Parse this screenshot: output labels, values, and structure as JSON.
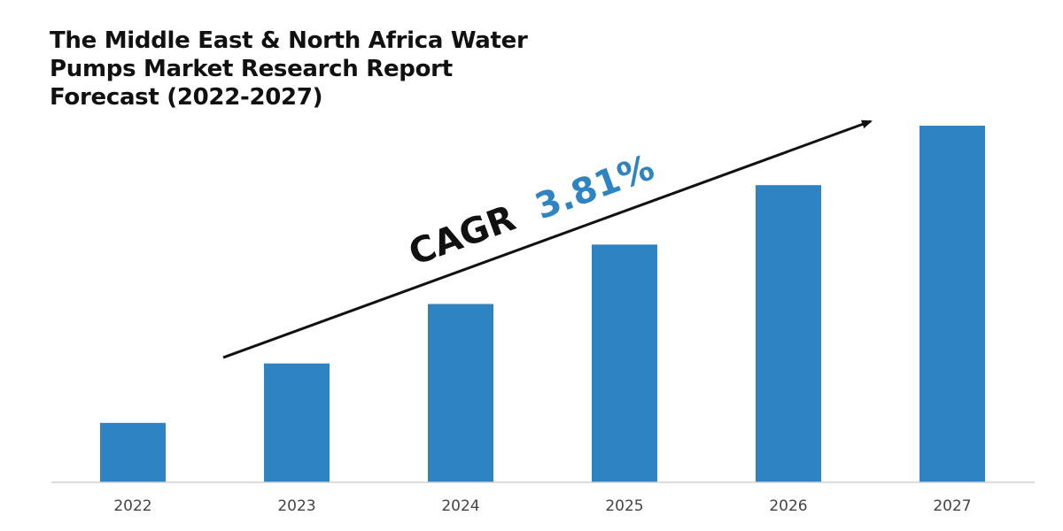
{
  "chart_data": {
    "type": "bar",
    "title": "The Middle East & North Africa Water Pumps Market Research Report Forecast (2022-2027)",
    "categories": [
      "2022",
      "2023",
      "2024",
      "2025",
      "2026",
      "2027"
    ],
    "values": [
      1,
      2,
      3,
      4,
      5,
      6
    ],
    "ylim": [
      0,
      6.06
    ],
    "xlabel": "",
    "ylabel": "",
    "grid": false,
    "bar_color": "#2E83C2",
    "annotation": {
      "label": "CAGR",
      "value": "3.81%",
      "label_color": "#111111",
      "value_color": "#2E83C2"
    }
  }
}
